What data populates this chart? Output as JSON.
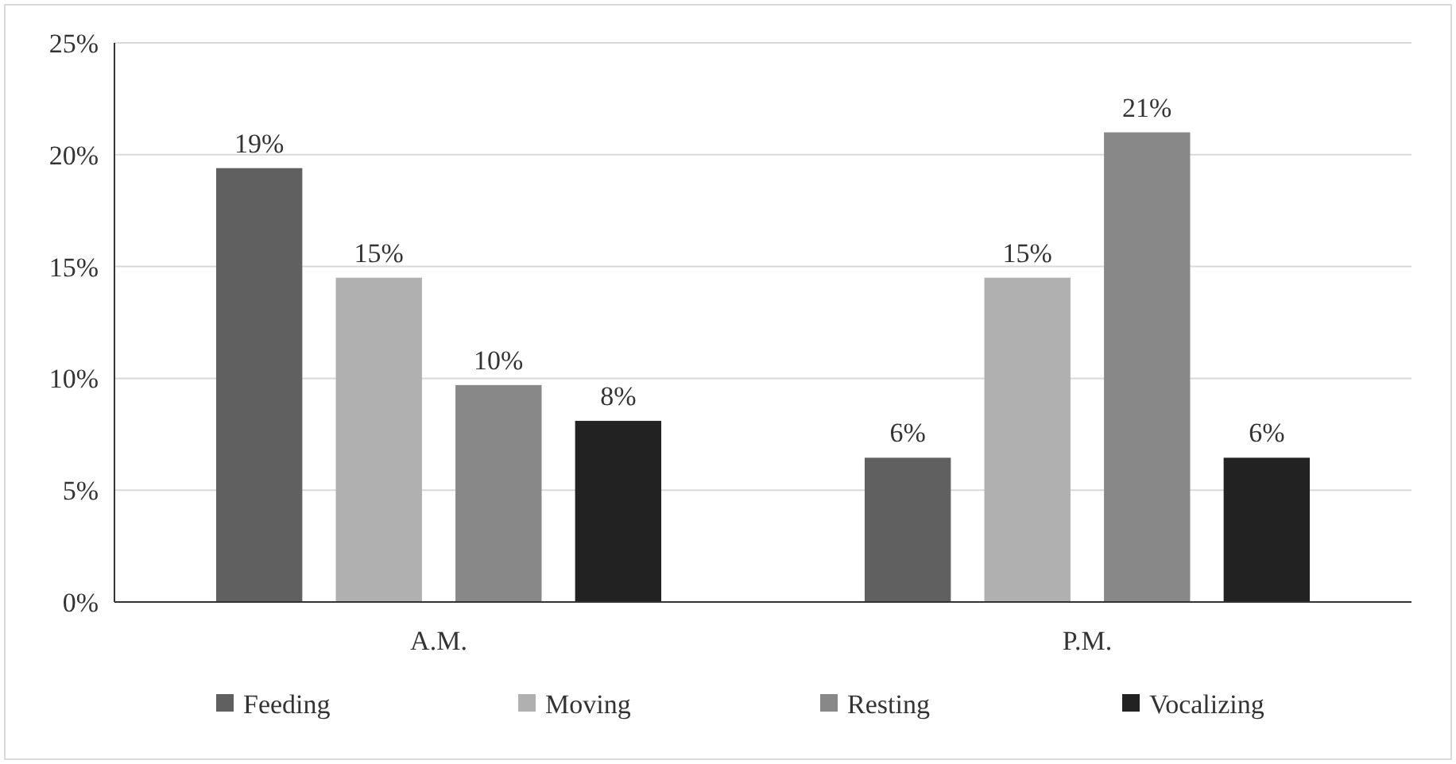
{
  "chart_data": {
    "type": "bar",
    "categories": [
      "A.M.",
      "P.M."
    ],
    "series": [
      {
        "name": "Feeding",
        "color": "#606060",
        "values": [
          19.4,
          6.45
        ],
        "value_labels": [
          "19%",
          "6%"
        ]
      },
      {
        "name": "Moving",
        "color": "#b0b0b0",
        "values": [
          14.5,
          14.5
        ],
        "value_labels": [
          "15%",
          "15%"
        ]
      },
      {
        "name": "Resting",
        "color": "#888888",
        "values": [
          9.7,
          21.0
        ],
        "value_labels": [
          "10%",
          "21%"
        ]
      },
      {
        "name": "Vocalizing",
        "color": "#222222",
        "values": [
          8.1,
          6.45
        ],
        "value_labels": [
          "8%",
          "6%"
        ]
      }
    ],
    "ylim": [
      0,
      25
    ],
    "yticks": [
      {
        "value": 0,
        "label": "0%"
      },
      {
        "value": 5,
        "label": "5%"
      },
      {
        "value": 10,
        "label": "10%"
      },
      {
        "value": 15,
        "label": "15%"
      },
      {
        "value": 20,
        "label": "20%"
      },
      {
        "value": 25,
        "label": "25%"
      }
    ],
    "grid": "y",
    "legend": "bottom"
  }
}
